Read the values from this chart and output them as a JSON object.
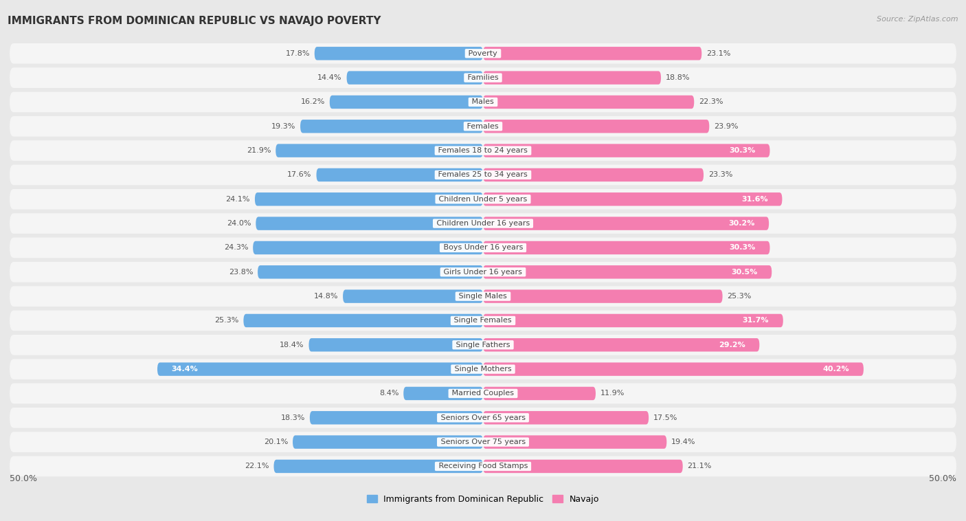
{
  "title": "IMMIGRANTS FROM DOMINICAN REPUBLIC VS NAVAJO POVERTY",
  "source": "Source: ZipAtlas.com",
  "categories": [
    "Poverty",
    "Families",
    "Males",
    "Females",
    "Females 18 to 24 years",
    "Females 25 to 34 years",
    "Children Under 5 years",
    "Children Under 16 years",
    "Boys Under 16 years",
    "Girls Under 16 years",
    "Single Males",
    "Single Females",
    "Single Fathers",
    "Single Mothers",
    "Married Couples",
    "Seniors Over 65 years",
    "Seniors Over 75 years",
    "Receiving Food Stamps"
  ],
  "left_values": [
    17.8,
    14.4,
    16.2,
    19.3,
    21.9,
    17.6,
    24.1,
    24.0,
    24.3,
    23.8,
    14.8,
    25.3,
    18.4,
    34.4,
    8.4,
    18.3,
    20.1,
    22.1
  ],
  "right_values": [
    23.1,
    18.8,
    22.3,
    23.9,
    30.3,
    23.3,
    31.6,
    30.2,
    30.3,
    30.5,
    25.3,
    31.7,
    29.2,
    40.2,
    11.9,
    17.5,
    19.4,
    21.1
  ],
  "left_color": "#6aade4",
  "right_color": "#f47eb0",
  "left_color_light": "#a8d4f0",
  "right_color_light": "#f9b8d4",
  "left_label": "Immigrants from Dominican Republic",
  "right_label": "Navajo",
  "axis_max": 50.0,
  "background_color": "#e8e8e8",
  "row_bg_color": "#f5f5f5",
  "title_fontsize": 11,
  "cat_fontsize": 8,
  "value_fontsize": 8,
  "bottom_label": "50.0%"
}
